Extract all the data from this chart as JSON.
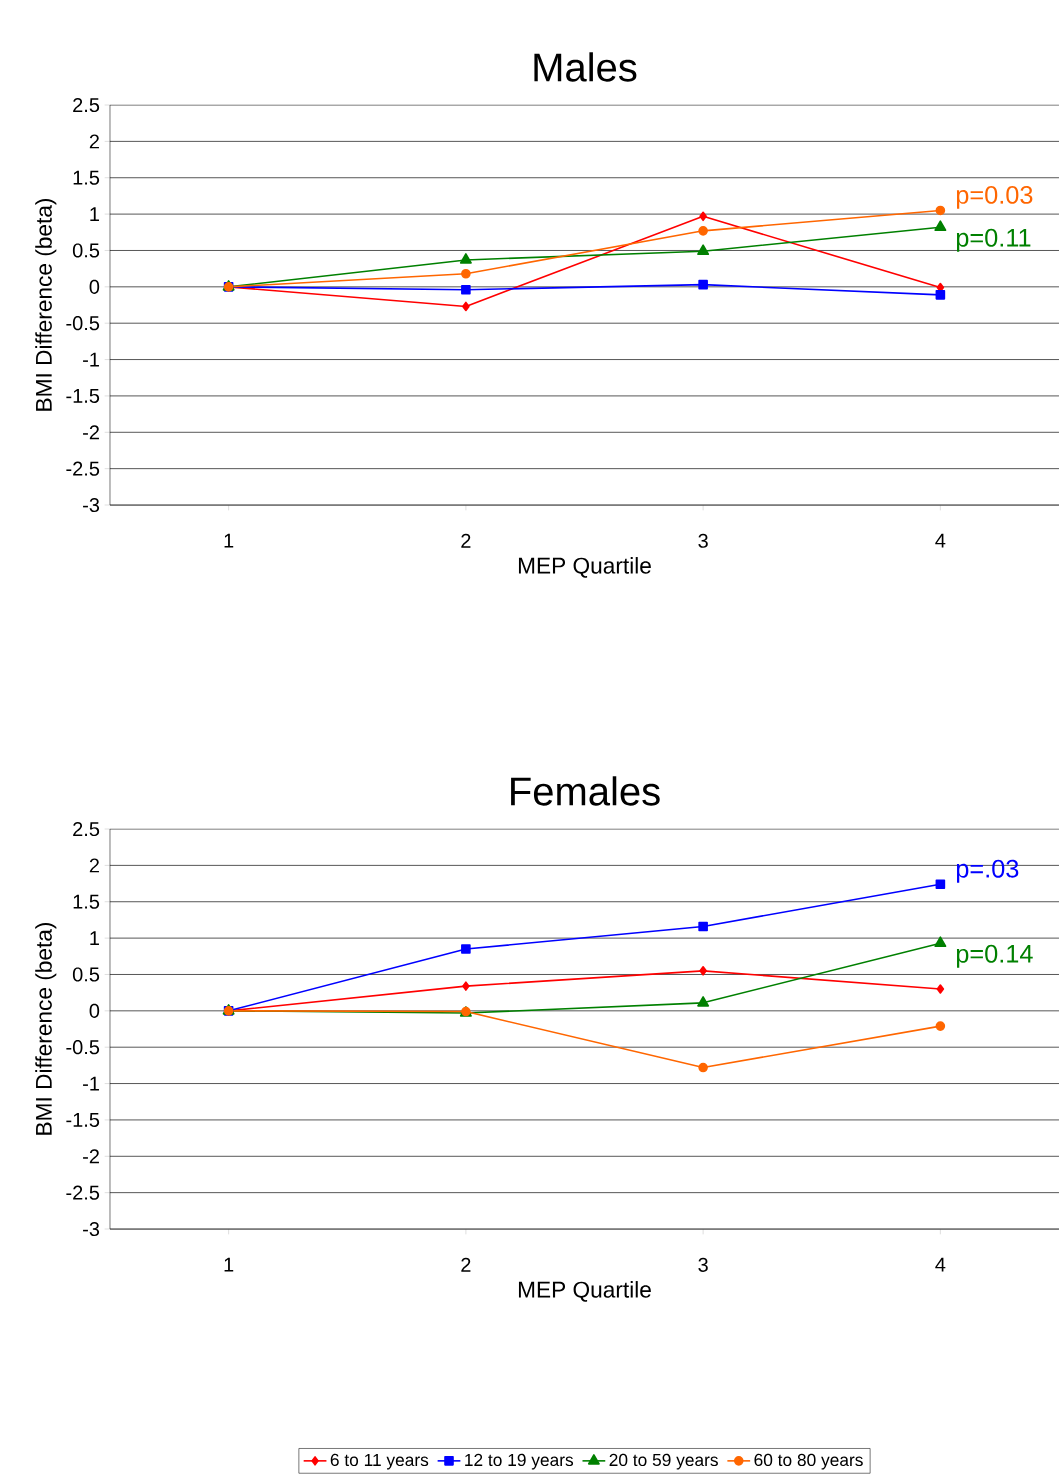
{
  "chart_data": [
    {
      "type": "line",
      "title": "Males",
      "xlabel": "MEP Quartile",
      "ylabel": "BMI Difference (beta)",
      "categories": [
        "1",
        "2",
        "3",
        "4"
      ],
      "ylim": [
        -3,
        2.5
      ],
      "yticks": [
        -3,
        -2.5,
        -2,
        -1.5,
        -1,
        -0.5,
        0,
        0.5,
        1,
        1.5,
        2,
        2.5
      ],
      "grid": "y",
      "legend": false,
      "series": [
        {
          "color": "#ff0000",
          "marker": "diamond",
          "values": [
            0,
            -0.27,
            0.97,
            -0.01
          ]
        },
        {
          "color": "#0000ff",
          "marker": "square",
          "values": [
            0,
            -0.04,
            0.03,
            -0.11
          ]
        },
        {
          "color": "#008000",
          "marker": "triangle",
          "values": [
            0,
            0.37,
            0.49,
            0.82
          ]
        },
        {
          "color": "#ff6600",
          "marker": "circle",
          "values": [
            0,
            0.18,
            0.77,
            1.05
          ]
        }
      ],
      "annotations": [
        {
          "text": "p=0.03",
          "x": "4",
          "y": 1.05
        },
        {
          "text": "p=0.11",
          "x": "4",
          "y": 0.82
        }
      ]
    },
    {
      "type": "line",
      "title": "Females",
      "xlabel": "MEP Quartile",
      "ylabel": "BMI Difference (beta)",
      "categories": [
        "1",
        "2",
        "3",
        "4"
      ],
      "ylim": [
        -3,
        2.5
      ],
      "yticks": [
        -3,
        -2.5,
        -2,
        -1.5,
        -1,
        -0.5,
        0,
        0.5,
        1,
        1.5,
        2,
        2.5
      ],
      "grid": "y",
      "legend": "bottom",
      "series": [
        {
          "name": "6 to 11 years",
          "color": "#ff0000",
          "marker": "diamond",
          "values": [
            0,
            0.34,
            0.55,
            0.3
          ]
        },
        {
          "name": "12 to 19 years",
          "color": "#0000ff",
          "marker": "square",
          "values": [
            0,
            0.85,
            1.16,
            1.74
          ]
        },
        {
          "name": "20 to 59 years",
          "color": "#008000",
          "marker": "triangle",
          "values": [
            0,
            -0.03,
            0.11,
            0.93
          ]
        },
        {
          "name": "60 to 80 years",
          "color": "#ff6600",
          "marker": "circle",
          "values": [
            0,
            -0.01,
            -0.78,
            -0.21
          ]
        }
      ],
      "annotations": [
        {
          "text": "p=.03",
          "x": "4",
          "y": 1.74
        },
        {
          "text": "p=0.14",
          "x": "4",
          "y": 0.93
        }
      ]
    }
  ]
}
